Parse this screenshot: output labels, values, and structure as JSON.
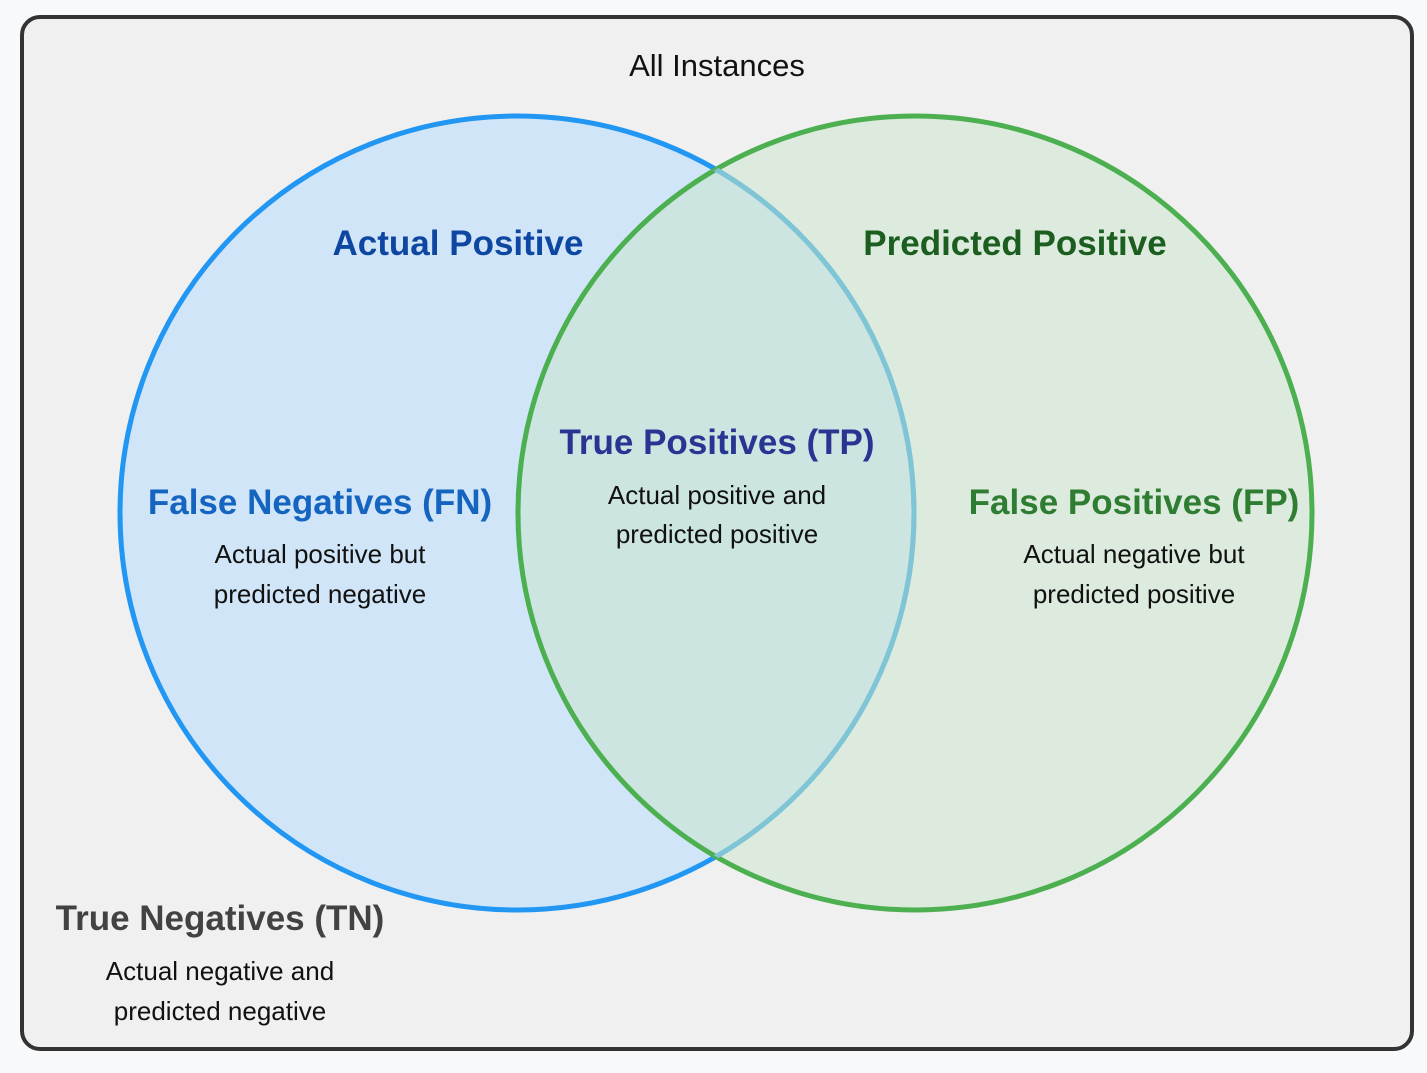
{
  "universe": {
    "title": "All Instances"
  },
  "sets": {
    "actual": {
      "label": "Actual Positive",
      "stroke": "#2196f3",
      "fill": "#bbdefb",
      "text_color": "#0d47a1"
    },
    "predicted": {
      "label": "Predicted Positive",
      "stroke": "#4caf50",
      "fill": "#c8e6c9",
      "text_color": "#1b5e20"
    }
  },
  "regions": {
    "fn": {
      "title": "False Negatives (FN)",
      "line1": "Actual positive but",
      "line2": "predicted negative",
      "color": "#1565c0"
    },
    "tp": {
      "title": "True Positives (TP)",
      "line1": "Actual positive and",
      "line2": "predicted positive",
      "color": "#283593"
    },
    "fp": {
      "title": "False Positives (FP)",
      "line1": "Actual negative but",
      "line2": "predicted positive",
      "color": "#2e7d32"
    },
    "tn": {
      "title": "True Negatives (TN)",
      "line1": "Actual negative and",
      "line2": "predicted negative",
      "color": "#424242"
    }
  },
  "colors": {
    "background": "#f8f9fa",
    "universe_fill": "#f0f0f0",
    "universe_stroke": "#333333",
    "overlap_stroke": "#80c5d6"
  }
}
